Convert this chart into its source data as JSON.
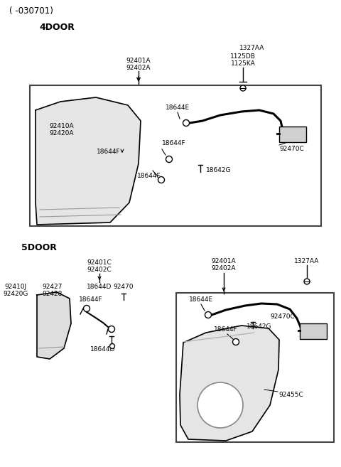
{
  "bg_color": "#ffffff",
  "title": "( -030701)",
  "s1": "4DOOR",
  "s2": "5DOOR",
  "fig_w": 4.8,
  "fig_h": 6.57,
  "dpi": 100
}
